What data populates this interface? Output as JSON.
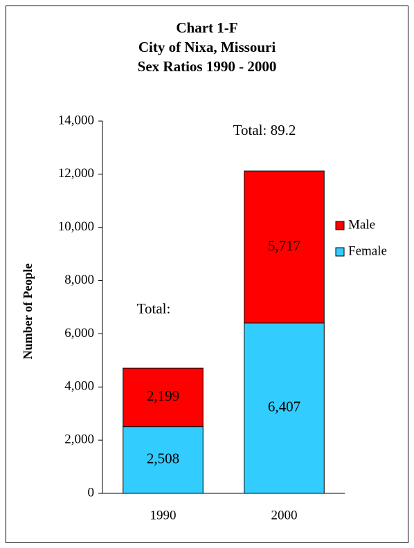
{
  "chart_data": {
    "type": "stacked-bar",
    "title": [
      "Chart 1-F",
      "City of Nixa, Missouri",
      "Sex Ratios 1990 - 2000"
    ],
    "y_label": "Number of People",
    "annotations": [
      "Total: 89.2",
      "Total:"
    ],
    "categories": [
      "1990",
      "2000"
    ],
    "series": [
      {
        "name": "Female",
        "color": "#33ccff",
        "values": [
          2508,
          6407
        ],
        "value_labels": [
          "2,508",
          "6,407"
        ]
      },
      {
        "name": "Male",
        "color": "#ff0000",
        "values": [
          2199,
          5717
        ],
        "value_labels": [
          "2,199",
          "5,717"
        ]
      }
    ],
    "ylim": [
      0,
      14000
    ],
    "yticks": [
      0,
      {
        "value": 2000,
        "label": "2,000"
      },
      {
        "value": 4000,
        "label": "4,000"
      },
      {
        "value": 6000,
        "label": "6,000"
      },
      {
        "value": 8000,
        "label": "8,000"
      },
      {
        "value": 10000,
        "label": "10,000"
      },
      {
        "value": 12000,
        "label": "12,000"
      },
      {
        "value": 14000,
        "label": "14,000"
      }
    ],
    "legend": "right"
  }
}
